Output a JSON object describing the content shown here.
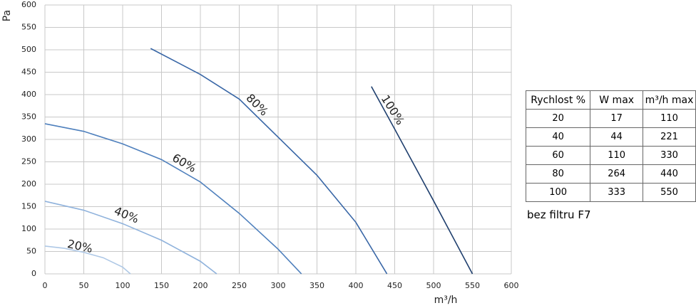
{
  "chart_data": {
    "type": "line",
    "x_label": "m³/h",
    "y_label": "Pa",
    "xlim": [
      0,
      600
    ],
    "xticks": [
      0,
      50,
      100,
      150,
      200,
      250,
      300,
      350,
      400,
      450,
      500,
      550,
      600
    ],
    "ylim": [
      0,
      600
    ],
    "yticks": [
      0,
      50,
      100,
      150,
      200,
      250,
      300,
      350,
      400,
      450,
      500,
      550,
      600
    ],
    "grid": true,
    "series": [
      {
        "name": "20%",
        "color": "#aec8e6",
        "x": [
          0,
          25,
          50,
          75,
          100,
          110
        ],
        "values": [
          62,
          57,
          48,
          36,
          15,
          0
        ]
      },
      {
        "name": "40%",
        "color": "#8fb2dc",
        "x": [
          0,
          50,
          100,
          150,
          200,
          221
        ],
        "values": [
          162,
          142,
          112,
          75,
          28,
          0
        ]
      },
      {
        "name": "60%",
        "color": "#4f80bd",
        "x": [
          0,
          50,
          100,
          150,
          200,
          250,
          300,
          330
        ],
        "values": [
          335,
          318,
          290,
          255,
          205,
          135,
          55,
          0
        ]
      },
      {
        "name": "80%",
        "color": "#3866a6",
        "x": [
          136,
          200,
          250,
          300,
          350,
          400,
          440
        ],
        "values": [
          503,
          445,
          390,
          305,
          220,
          115,
          0
        ]
      },
      {
        "name": "100%",
        "color": "#1f3f6e",
        "x": [
          420,
          450,
          500,
          550
        ],
        "values": [
          418,
          323,
          163,
          0
        ]
      }
    ]
  },
  "table": {
    "header": [
      "Rychlost %",
      "W max",
      "m³/h max"
    ],
    "rows": [
      [
        20,
        17,
        110
      ],
      [
        40,
        44,
        221
      ],
      [
        60,
        110,
        330
      ],
      [
        80,
        264,
        440
      ],
      [
        100,
        333,
        550
      ]
    ]
  },
  "note": "bez filtru F7"
}
